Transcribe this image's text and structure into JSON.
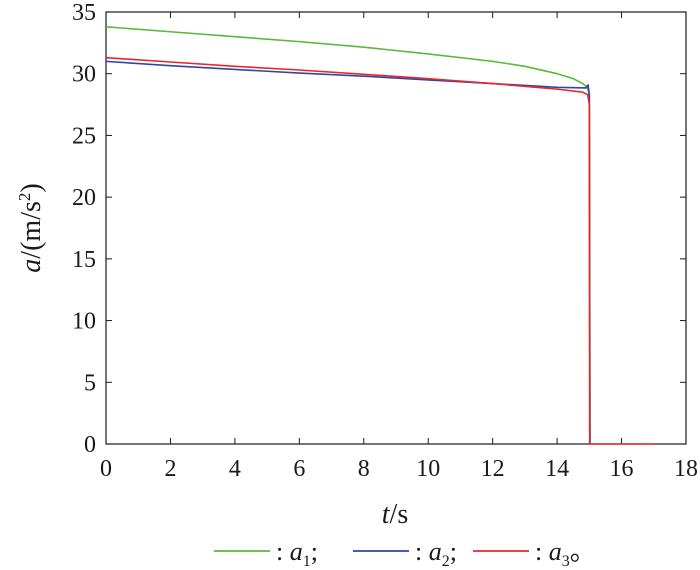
{
  "chart_data": {
    "type": "line",
    "xlim": [
      0,
      18
    ],
    "ylim": [
      0,
      35
    ],
    "xticks": [
      0,
      2,
      4,
      6,
      8,
      10,
      12,
      14,
      16,
      18
    ],
    "yticks": [
      0,
      5,
      10,
      15,
      20,
      25,
      30,
      35
    ],
    "xlabel": {
      "var": "t",
      "sep": "/",
      "unit": "s"
    },
    "ylabel": {
      "var": "a",
      "sep": "/",
      "unit_open": "(m/s",
      "unit_sup": "2",
      "unit_close": ")"
    },
    "grid": false,
    "legend_position": "bottom",
    "series": [
      {
        "name": "a1",
        "legend": {
          "prefix": ": ",
          "var": "a",
          "sub": "1",
          "suffix": ";"
        },
        "color": "#5cb83a",
        "points": [
          [
            0,
            33.8
          ],
          [
            2,
            33.4
          ],
          [
            4,
            33.0
          ],
          [
            6,
            32.6
          ],
          [
            8,
            32.15
          ],
          [
            10,
            31.6
          ],
          [
            12,
            31.0
          ],
          [
            13,
            30.6
          ],
          [
            14,
            30.0
          ],
          [
            14.5,
            29.6
          ],
          [
            14.8,
            29.2
          ],
          [
            14.93,
            28.9
          ],
          [
            14.98,
            28.5
          ],
          [
            15.0,
            28.3
          ],
          [
            15.02,
            0
          ]
        ]
      },
      {
        "name": "a2",
        "legend": {
          "prefix": ": ",
          "var": "a",
          "sub": "2",
          "suffix": ";"
        },
        "color": "#2a48a8",
        "points": [
          [
            0,
            31.0
          ],
          [
            2,
            30.65
          ],
          [
            4,
            30.35
          ],
          [
            6,
            30.05
          ],
          [
            8,
            29.8
          ],
          [
            10,
            29.5
          ],
          [
            12,
            29.2
          ],
          [
            14,
            28.9
          ],
          [
            14.9,
            28.85
          ],
          [
            14.96,
            29.1
          ],
          [
            15.0,
            28.3
          ],
          [
            15.02,
            0
          ]
        ]
      },
      {
        "name": "a3",
        "legend": {
          "prefix": ": ",
          "var": "a",
          "sub": "3",
          "suffix": "。"
        },
        "color": "#e8262a",
        "points": [
          [
            0,
            31.3
          ],
          [
            2,
            30.95
          ],
          [
            4,
            30.6
          ],
          [
            6,
            30.3
          ],
          [
            8,
            29.95
          ],
          [
            10,
            29.6
          ],
          [
            12,
            29.2
          ],
          [
            14,
            28.75
          ],
          [
            14.8,
            28.5
          ],
          [
            14.95,
            28.3
          ],
          [
            15.0,
            27.5
          ],
          [
            15.01,
            0
          ],
          [
            17,
            0
          ]
        ]
      }
    ]
  }
}
